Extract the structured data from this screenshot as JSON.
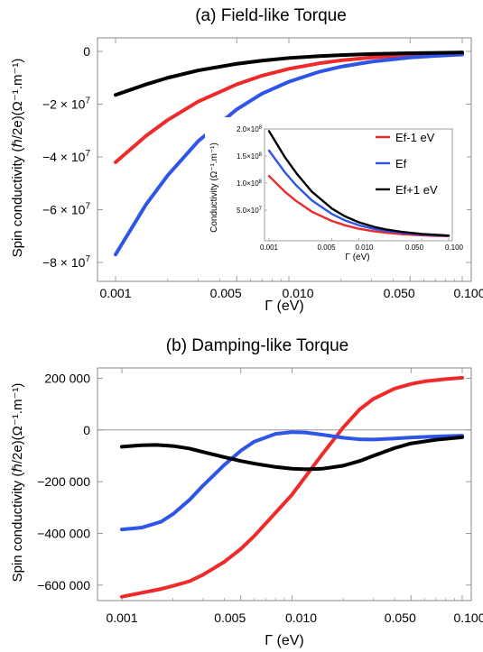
{
  "chart_data": [
    {
      "panel": "a",
      "type": "line",
      "title": "(a) Field-like Torque",
      "xlabel": "Γ (eV)",
      "ylabel": "Spin conductivity (ℏ/2e)(Ω⁻¹.m⁻¹)",
      "xscale": "log",
      "xlim": [
        0.001,
        0.1
      ],
      "ylim": [
        -80000000,
        0
      ],
      "xticks": [
        0.001,
        0.005,
        0.01,
        0.05,
        0.1
      ],
      "xtick_labels": [
        "0.001",
        "0.005",
        "0.010",
        "0.050",
        "0.100"
      ],
      "yticks": [
        0,
        -20000000,
        -40000000,
        -60000000,
        -80000000
      ],
      "ytick_labels": [
        "0",
        "−2 × 10",
        "−4 × 10",
        "−6 × 10",
        "−8 × 10"
      ],
      "ytick_exponents": [
        "",
        "7",
        "7",
        "7",
        "7"
      ],
      "series": [
        {
          "name": "Ef-1 eV",
          "color": "#ee2a2a",
          "x": [
            0.001,
            0.0015,
            0.002,
            0.003,
            0.005,
            0.007,
            0.01,
            0.015,
            0.02,
            0.03,
            0.05,
            0.07,
            0.1
          ],
          "y": [
            -42000000,
            -32000000,
            -26000000,
            -19000000,
            -12500000,
            -9200000,
            -6600000,
            -4500000,
            -3400000,
            -2300000,
            -1400000,
            -1000000,
            -700000
          ]
        },
        {
          "name": "Ef",
          "color": "#2f55e8",
          "x": [
            0.001,
            0.0015,
            0.002,
            0.003,
            0.005,
            0.007,
            0.01,
            0.015,
            0.02,
            0.03,
            0.05,
            0.07,
            0.1
          ],
          "y": [
            -77000000,
            -58000000,
            -47000000,
            -34000000,
            -22000000,
            -16000000,
            -11500000,
            -7700000,
            -5800000,
            -3900000,
            -2300000,
            -1700000,
            -1200000
          ]
        },
        {
          "name": "Ef+1 eV",
          "color": "#000000",
          "x": [
            0.001,
            0.0015,
            0.002,
            0.003,
            0.005,
            0.007,
            0.01,
            0.015,
            0.02,
            0.03,
            0.05,
            0.07,
            0.1
          ],
          "y": [
            -16500000,
            -12500000,
            -10000000,
            -7200000,
            -4700000,
            -3500000,
            -2500000,
            -1800000,
            -1400000,
            -1000000,
            -700000,
            -550000,
            -400000
          ]
        }
      ],
      "inset": {
        "type": "line",
        "xlabel": "Γ (eV)",
        "ylabel": "Conductivity (Ω⁻¹.m⁻¹)",
        "xscale": "log",
        "xlim": [
          0.001,
          0.1
        ],
        "ylim": [
          0,
          200000000
        ],
        "xticks": [
          0.001,
          0.005,
          0.01,
          0.05,
          0.1
        ],
        "xtick_labels": [
          "0.001",
          "0.005",
          "0.010",
          "0.050",
          "0.100"
        ],
        "yticks": [
          50000000,
          100000000,
          150000000,
          200000000
        ],
        "ytick_labels": [
          "5.0×10",
          "1.0×10",
          "1.5×10",
          "2.0×10"
        ],
        "ytick_exponents": [
          "7",
          "8",
          "8",
          "8"
        ],
        "legend_position": "top-right",
        "series": [
          {
            "name": "Ef-1 eV",
            "color": "#ee2a2a",
            "x": [
              0.001,
              0.0015,
              0.002,
              0.003,
              0.005,
              0.007,
              0.01,
              0.015,
              0.02,
              0.03,
              0.05,
              0.07,
              0.1
            ],
            "y": [
              113000000,
              84000000,
              67000000,
              47000000,
              30000000,
              22000000,
              15500000,
              10700000,
              8200000,
              5600000,
              3400000,
              2500000,
              1800000
            ]
          },
          {
            "name": "Ef",
            "color": "#2f55e8",
            "x": [
              0.001,
              0.0015,
              0.002,
              0.003,
              0.005,
              0.007,
              0.01,
              0.015,
              0.02,
              0.03,
              0.05,
              0.07,
              0.1
            ],
            "y": [
              160000000,
              120000000,
              96000000,
              68000000,
              43000000,
              31000000,
              22000000,
              15000000,
              11500000,
              8000000,
              4800000,
              3500000,
              2500000
            ]
          },
          {
            "name": "Ef+1 eV",
            "color": "#000000",
            "x": [
              0.001,
              0.0015,
              0.002,
              0.003,
              0.005,
              0.007,
              0.01,
              0.015,
              0.02,
              0.03,
              0.05,
              0.07,
              0.1
            ],
            "y": [
              196000000,
              148000000,
              119000000,
              84000000,
              53000000,
              38500000,
              27500000,
              18700000,
              14300000,
              9800000,
              6000000,
              4400000,
              3100000
            ]
          }
        ]
      }
    },
    {
      "panel": "b",
      "type": "line",
      "title": "(b) Damping-like Torque",
      "xlabel": "Γ (eV)",
      "ylabel": "Spin conductivity (ℏ/2e)(Ω⁻¹.m⁻¹)",
      "xscale": "log",
      "xlim": [
        0.001,
        0.1
      ],
      "ylim": [
        -660000,
        240000
      ],
      "zero_line": true,
      "xticks": [
        0.001,
        0.005,
        0.01,
        0.05,
        0.1
      ],
      "xtick_labels": [
        "0.001",
        "0.005",
        "0.010",
        "0.050",
        "0.100"
      ],
      "yticks": [
        200000,
        0,
        -200000,
        -400000,
        -600000
      ],
      "ytick_labels": [
        "200 000",
        "0",
        "−200 000",
        "−400 000",
        "−600 000"
      ],
      "series": [
        {
          "name": "Ef-1 eV",
          "color": "#ee2a2a",
          "x": [
            0.001,
            0.0013,
            0.0017,
            0.002,
            0.0025,
            0.003,
            0.004,
            0.005,
            0.006,
            0.008,
            0.01,
            0.012,
            0.015,
            0.02,
            0.025,
            0.03,
            0.04,
            0.05,
            0.06,
            0.08,
            0.1
          ],
          "y": [
            -645000,
            -630000,
            -615000,
            -603000,
            -585000,
            -560000,
            -510000,
            -460000,
            -410000,
            -320000,
            -250000,
            -180000,
            -95000,
            10000,
            80000,
            120000,
            160000,
            178000,
            188000,
            197000,
            202000
          ]
        },
        {
          "name": "Ef",
          "color": "#2f55e8",
          "x": [
            0.001,
            0.0013,
            0.0017,
            0.002,
            0.0025,
            0.003,
            0.004,
            0.005,
            0.006,
            0.008,
            0.01,
            0.012,
            0.015,
            0.02,
            0.025,
            0.03,
            0.04,
            0.05,
            0.07,
            0.1
          ],
          "y": [
            -385000,
            -378000,
            -355000,
            -325000,
            -270000,
            -215000,
            -135000,
            -80000,
            -45000,
            -15000,
            -8000,
            -10000,
            -18000,
            -30000,
            -36000,
            -37000,
            -33000,
            -29000,
            -25000,
            -22000
          ]
        },
        {
          "name": "Ef+1 eV",
          "color": "#000000",
          "x": [
            0.001,
            0.0013,
            0.0016,
            0.002,
            0.0025,
            0.003,
            0.004,
            0.005,
            0.006,
            0.008,
            0.01,
            0.012,
            0.015,
            0.02,
            0.025,
            0.03,
            0.04,
            0.05,
            0.07,
            0.1
          ],
          "y": [
            -65000,
            -59000,
            -58000,
            -62000,
            -72000,
            -85000,
            -105000,
            -120000,
            -130000,
            -143000,
            -150000,
            -152000,
            -150000,
            -138000,
            -120000,
            -100000,
            -70000,
            -52000,
            -38000,
            -28000
          ]
        }
      ]
    }
  ]
}
